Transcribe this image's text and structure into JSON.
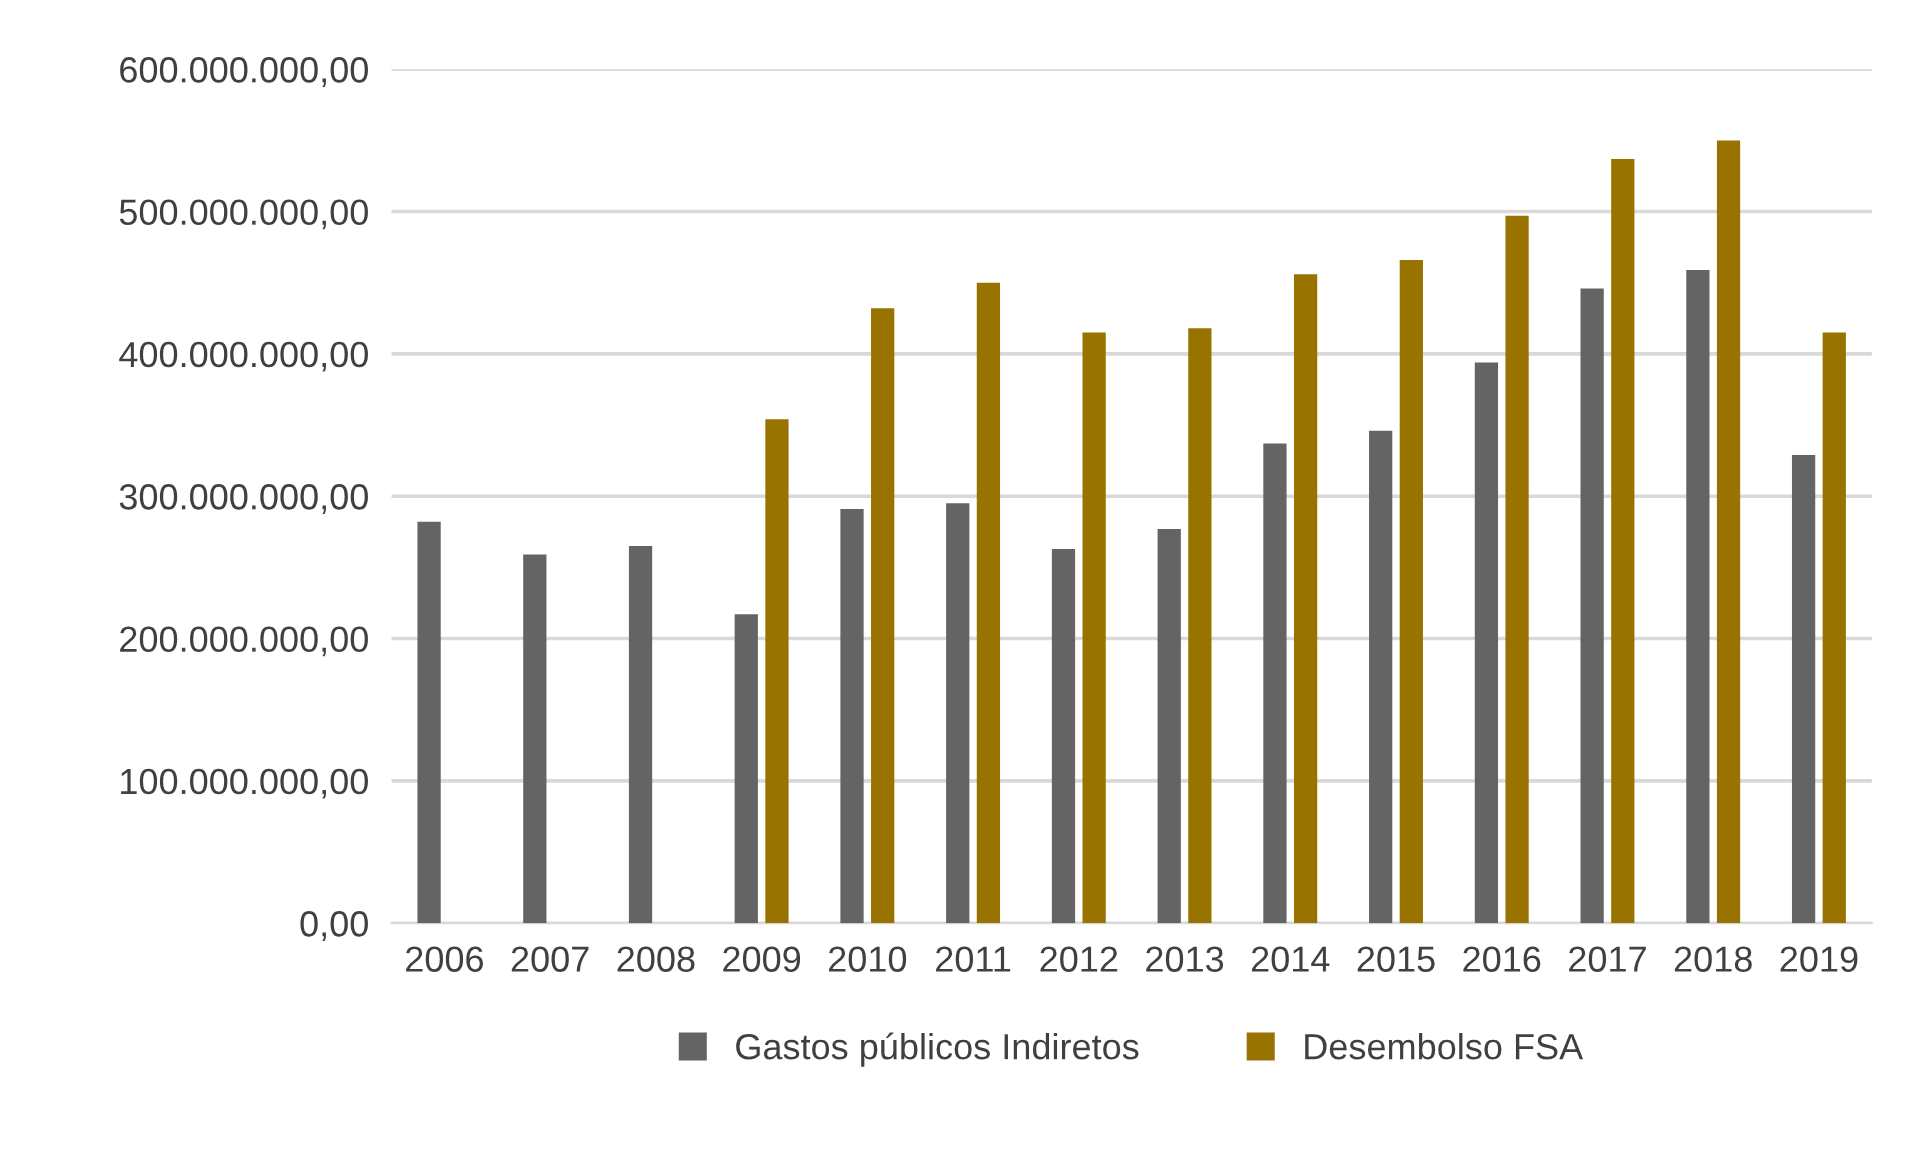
{
  "chart_data": {
    "type": "bar",
    "categories": [
      "2006",
      "2007",
      "2008",
      "2009",
      "2010",
      "2011",
      "2012",
      "2013",
      "2014",
      "2015",
      "2016",
      "2017",
      "2018",
      "2019"
    ],
    "series": [
      {
        "name": "Gastos públicos Indiretos",
        "color": "#646464",
        "values": [
          282000000,
          259000000,
          265000000,
          217000000,
          291000000,
          295000000,
          263000000,
          277000000,
          337000000,
          346000000,
          394000000,
          446000000,
          459000000,
          329000000
        ]
      },
      {
        "name": "Desembolso FSA",
        "color": "#997300",
        "values": [
          null,
          null,
          null,
          354000000,
          432000000,
          450000000,
          415000000,
          418000000,
          456000000,
          466000000,
          497000000,
          537000000,
          550000000,
          415000000
        ]
      }
    ],
    "ylim": [
      0,
      600000000
    ],
    "yticks": [
      {
        "value": 0,
        "label": "0,00"
      },
      {
        "value": 100000000,
        "label": "100.000.000,00"
      },
      {
        "value": 200000000,
        "label": "200.000.000,00"
      },
      {
        "value": 300000000,
        "label": "300.000.000,00"
      },
      {
        "value": 400000000,
        "label": "400.000.000,00"
      },
      {
        "value": 500000000,
        "label": "500.000.000,00"
      },
      {
        "value": 600000000,
        "label": "600.000.000,00"
      }
    ],
    "grid": "y",
    "legend": "bottom"
  }
}
